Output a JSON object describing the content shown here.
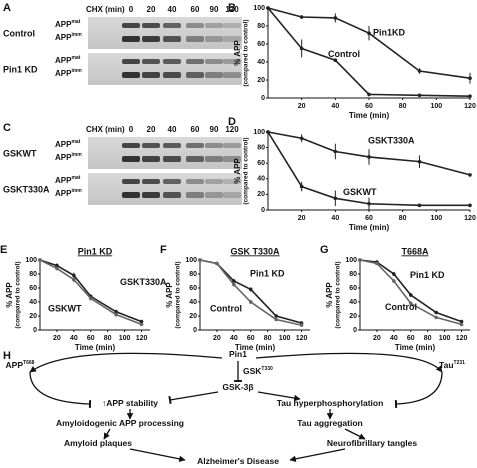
{
  "blots": [
    {
      "panel": "A",
      "header": "CHX (min)",
      "lanes": [
        "0",
        "20",
        "40",
        "60",
        "90",
        "120"
      ],
      "rows": [
        {
          "label": "Control",
          "bands": [
            {
              "base": "APP",
              "sup": "mat"
            },
            {
              "base": "APP",
              "sup": "imm"
            }
          ]
        },
        {
          "label": "Pin1 KD",
          "bands": [
            {
              "base": "APP",
              "sup": "mat"
            },
            {
              "base": "APP",
              "sup": "imm"
            }
          ]
        }
      ]
    },
    {
      "panel": "C",
      "header": "CHX (min)",
      "lanes": [
        "0",
        "20",
        "40",
        "60",
        "90",
        "120"
      ],
      "rows": [
        {
          "label": "GSKWT",
          "bands": [
            {
              "base": "APP",
              "sup": "mat"
            },
            {
              "base": "APP",
              "sup": "imm"
            }
          ]
        },
        {
          "label": "GSKT330A",
          "bands": [
            {
              "base": "APP",
              "sup": "mat"
            },
            {
              "base": "APP",
              "sup": "imm"
            }
          ]
        }
      ]
    }
  ],
  "chart_data": [
    {
      "panel": "B",
      "type": "line",
      "xlabel": "Time (min)",
      "ylabel": "% APP",
      "ylabel_sub": "(compared to control)",
      "x": [
        0,
        20,
        40,
        60,
        90,
        120
      ],
      "xlim": [
        0,
        120
      ],
      "xticks": [
        20,
        40,
        60,
        80,
        100,
        120
      ],
      "ylim": [
        0,
        100
      ],
      "yticks": [
        0,
        20,
        40,
        60,
        80,
        100
      ],
      "series": [
        {
          "name": "Pin1KD",
          "color": "#222222",
          "values": [
            100,
            90,
            89,
            72,
            30,
            22
          ],
          "errors": [
            0,
            2,
            5,
            8,
            3,
            6
          ]
        },
        {
          "name": "Control",
          "color": "#222222",
          "values": [
            100,
            55,
            42,
            4,
            3,
            2
          ],
          "errors": [
            0,
            10,
            2,
            2,
            1,
            1
          ]
        }
      ]
    },
    {
      "panel": "D",
      "type": "line",
      "xlabel": "Time (min)",
      "ylabel": "% APP",
      "ylabel_sub": "(compared to control)",
      "x": [
        0,
        20,
        40,
        60,
        90,
        120
      ],
      "xlim": [
        0,
        120
      ],
      "xticks": [
        20,
        40,
        60,
        80,
        100,
        120
      ],
      "ylim": [
        0,
        100
      ],
      "yticks": [
        0,
        20,
        40,
        60,
        80,
        100
      ],
      "series": [
        {
          "name": "GSKT330A",
          "color": "#222222",
          "values": [
            100,
            92,
            75,
            68,
            62,
            45
          ],
          "errors": [
            0,
            5,
            10,
            10,
            8,
            2
          ]
        },
        {
          "name": "GSKWT",
          "color": "#222222",
          "values": [
            100,
            30,
            15,
            8,
            6,
            6
          ],
          "errors": [
            0,
            6,
            10,
            8,
            2,
            2
          ]
        }
      ]
    },
    {
      "panel": "E",
      "title": "Pin1 KD",
      "type": "line",
      "xlabel": "Time (min)",
      "ylabel": "% APP",
      "ylabel_sub": "(compared to control)",
      "x": [
        0,
        20,
        40,
        60,
        90,
        120
      ],
      "xlim": [
        0,
        130
      ],
      "xticks": [
        20,
        40,
        60,
        80,
        100,
        120
      ],
      "ylim": [
        0,
        100
      ],
      "yticks": [
        0,
        20,
        40,
        60,
        80,
        100
      ],
      "series": [
        {
          "name": "GSKT330A",
          "color": "#222222",
          "values": [
            100,
            92,
            78,
            48,
            26,
            12
          ],
          "errors": [
            0,
            3,
            4,
            3,
            3,
            2
          ]
        },
        {
          "name": "GSKWT",
          "color": "#666666",
          "values": [
            100,
            88,
            72,
            45,
            22,
            8
          ],
          "errors": [
            0,
            3,
            4,
            3,
            3,
            2
          ]
        }
      ]
    },
    {
      "panel": "F",
      "title": "GSK T330A",
      "type": "line",
      "xlabel": "Time (min)",
      "ylabel": "% APP",
      "ylabel_sub": "(compared to control)",
      "x": [
        0,
        20,
        40,
        60,
        90,
        120
      ],
      "xlim": [
        0,
        130
      ],
      "xticks": [
        20,
        40,
        60,
        80,
        100,
        120
      ],
      "ylim": [
        0,
        100
      ],
      "yticks": [
        0,
        20,
        40,
        60,
        80,
        100
      ],
      "series": [
        {
          "name": "Pin1 KD",
          "color": "#222222",
          "values": [
            100,
            95,
            70,
            58,
            20,
            10
          ],
          "errors": [
            0,
            2,
            3,
            3,
            2,
            2
          ]
        },
        {
          "name": "Control",
          "color": "#666666",
          "values": [
            100,
            95,
            65,
            40,
            15,
            7
          ],
          "errors": [
            0,
            2,
            3,
            3,
            2,
            2
          ]
        }
      ]
    },
    {
      "panel": "G",
      "title": "T668A",
      "type": "line",
      "xlabel": "Time (min)",
      "ylabel": "% APP",
      "ylabel_sub": "(compared to control)",
      "x": [
        0,
        20,
        40,
        60,
        90,
        120
      ],
      "xlim": [
        0,
        130
      ],
      "xticks": [
        20,
        40,
        60,
        80,
        100,
        120
      ],
      "ylim": [
        0,
        100
      ],
      "yticks": [
        0,
        20,
        40,
        60,
        80,
        100
      ],
      "series": [
        {
          "name": "Pin1 KD",
          "color": "#222222",
          "values": [
            100,
            97,
            80,
            50,
            25,
            12
          ],
          "errors": [
            0,
            2,
            3,
            3,
            2,
            2
          ]
        },
        {
          "name": "Control",
          "color": "#666666",
          "values": [
            100,
            95,
            70,
            38,
            18,
            8
          ],
          "errors": [
            0,
            2,
            3,
            3,
            2,
            2
          ]
        }
      ]
    }
  ],
  "diagram": {
    "panel": "H",
    "nodes": [
      {
        "text": "Pin1"
      },
      {
        "text": "APP",
        "sup": "T668"
      },
      {
        "text": "GSK",
        "sup": "T330"
      },
      {
        "text": "GSK-3β"
      },
      {
        "text": "Tau",
        "sup": "T231"
      },
      {
        "text": "↑APP stability"
      },
      {
        "text": "Tau hyperphosphorylation"
      },
      {
        "text": "Amyloidogenic APP processing"
      },
      {
        "text": "Tau aggregation"
      },
      {
        "text": "Amyloid plaques"
      },
      {
        "text": "Neurofibrillary tangles"
      },
      {
        "text": "Alzheimer's Disease"
      }
    ]
  }
}
